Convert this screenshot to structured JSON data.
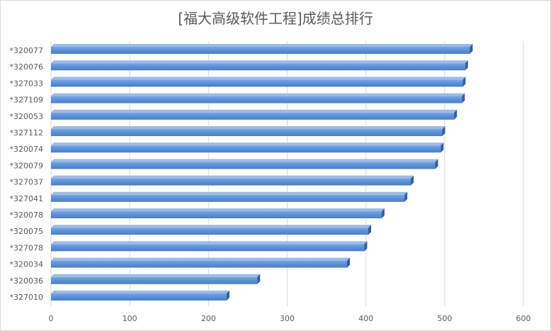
{
  "chart_data": {
    "type": "bar",
    "orientation": "horizontal",
    "style": "3d-bar",
    "title": "[福大高级软件工程]成绩总排行",
    "categories": [
      "*320077",
      "*320076",
      "*327033",
      "*327109",
      "*320053",
      "*327112",
      "*320074",
      "*320079",
      "*327037",
      "*327041",
      "*320078",
      "*320075",
      "*327078",
      "*320034",
      "*320036",
      "*327010"
    ],
    "values": [
      532,
      526,
      523,
      522,
      512,
      497,
      495,
      488,
      457,
      449,
      420,
      403,
      398,
      376,
      262,
      223
    ],
    "xlim": [
      0,
      600
    ],
    "xticks": [
      0,
      100,
      200,
      300,
      400,
      500,
      600
    ],
    "grid": true,
    "bar_color": "#5b8fd6"
  }
}
